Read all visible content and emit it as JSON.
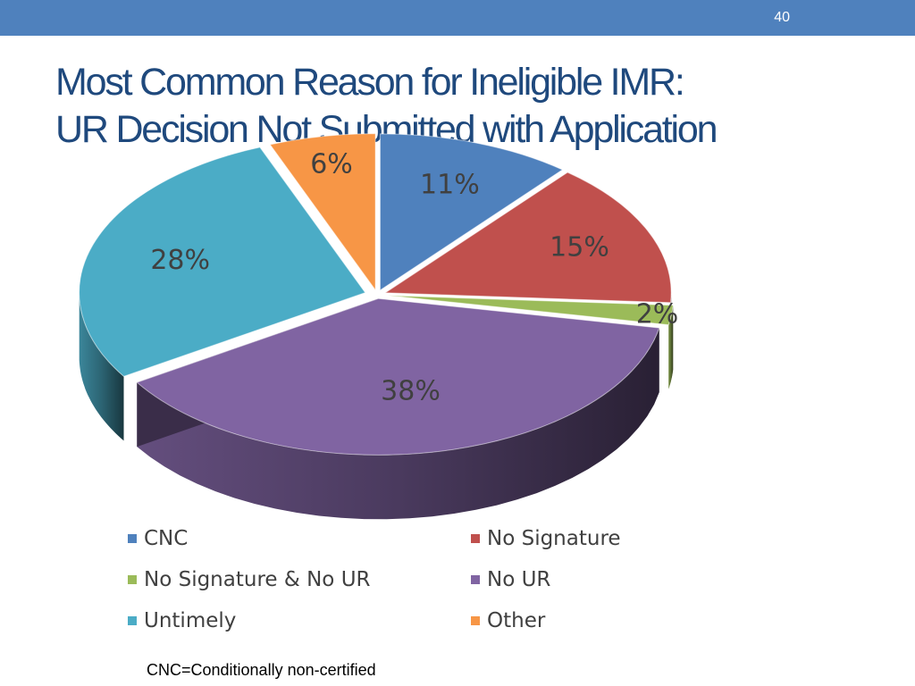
{
  "slide": {
    "page_number": "40",
    "title_lines": [
      "Most Common Reason for Ineligible IMR:",
      "UR Decision Not Submitted with Application"
    ],
    "footnote": "CNC=Conditionally non-certified"
  },
  "colors": {
    "top_bar": "#4f81bd",
    "title": "#1f497d"
  },
  "chart_data": {
    "type": "pie",
    "style": "3d-exploded",
    "categories": [
      "CNC",
      "No Signature",
      "No Signature & No UR",
      "No UR",
      "Untimely",
      "Other"
    ],
    "values": [
      11,
      15,
      2,
      38,
      28,
      6
    ],
    "labels": [
      "11%",
      "15%",
      "2%",
      "38%",
      "28%",
      "6%"
    ],
    "colors": [
      "#4f81bd",
      "#c0504d",
      "#9bbb59",
      "#8064a2",
      "#4bacc6",
      "#f79646"
    ],
    "legend_position": "bottom"
  }
}
